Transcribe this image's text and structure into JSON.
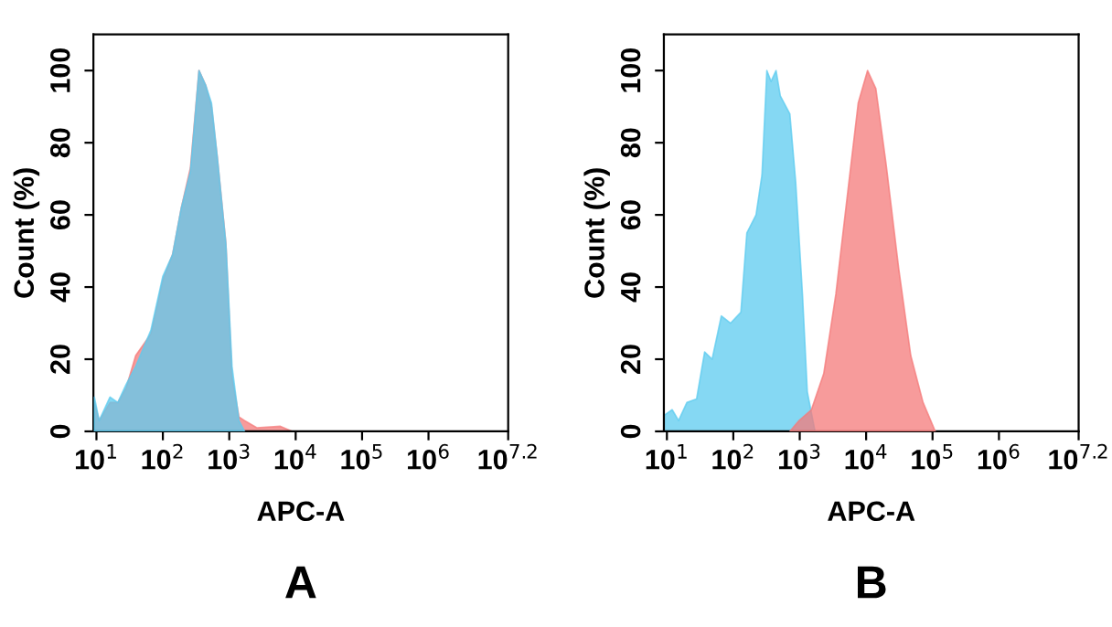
{
  "chart_data": [
    {
      "type": "area",
      "xlabel": "APC-A",
      "ylabel": "Count (%)",
      "log": "x",
      "xlim": [
        9,
        15850000
      ],
      "ylim": [
        0,
        110
      ],
      "grid": false,
      "legend": false,
      "xticks": [
        {
          "value": 10,
          "label": "10$^{1}$"
        },
        {
          "value": 100,
          "label": "10$^{2}$"
        },
        {
          "value": 1000,
          "label": "10$^{3}$"
        },
        {
          "value": 10000,
          "label": "10$^{4}$"
        },
        {
          "value": 100000,
          "label": "10$^{5}$"
        },
        {
          "value": 1000000,
          "label": "10$^{6}$"
        },
        {
          "value": 15850000,
          "label": "10$^{7.2}$"
        }
      ],
      "yticks": [
        0,
        20,
        40,
        60,
        80,
        100
      ],
      "annotations": [
        "A"
      ],
      "series": [
        {
          "color": "#f47a7a",
          "x": [
            9.3,
            11,
            16,
            21,
            28,
            39,
            66,
            100,
            140,
            190,
            260,
            350,
            440,
            540,
            660,
            890,
            1100,
            1400,
            1700,
            2600,
            5900,
            8900
          ],
          "values": [
            8,
            3,
            8,
            8,
            12,
            21,
            27,
            42,
            49,
            62,
            73,
            100,
            96,
            90,
            76,
            52,
            15,
            4,
            3,
            1,
            1.4,
            0
          ]
        },
        {
          "color": "#5ccbef",
          "x": [
            9.3,
            11,
            16,
            21,
            28,
            39,
            66,
            100,
            140,
            190,
            260,
            350,
            440,
            540,
            660,
            890,
            1100,
            1400,
            1700
          ],
          "values": [
            9.5,
            3,
            9.5,
            8,
            13,
            18,
            28,
            43,
            49,
            62,
            72,
            100,
            96,
            91,
            76,
            52,
            18,
            3,
            0
          ]
        }
      ]
    },
    {
      "type": "area",
      "xlabel": "APC-A",
      "ylabel": "Count (%)",
      "log": "x",
      "xlim": [
        9,
        15850000
      ],
      "ylim": [
        0,
        110
      ],
      "grid": false,
      "legend": false,
      "xticks": [
        {
          "value": 10,
          "label": "10$^{1}$"
        },
        {
          "value": 100,
          "label": "10$^{2}$"
        },
        {
          "value": 1000,
          "label": "10$^{3}$"
        },
        {
          "value": 10000,
          "label": "10$^{4}$"
        },
        {
          "value": 100000,
          "label": "10$^{5}$"
        },
        {
          "value": 1000000,
          "label": "10$^{6}$"
        },
        {
          "value": 15850000,
          "label": "10$^{7.2}$"
        }
      ],
      "yticks": [
        0,
        20,
        40,
        60,
        80,
        100
      ],
      "annotations": [
        "B"
      ],
      "series": [
        {
          "color": "#5ccbef",
          "x": [
            9,
            12,
            15,
            20,
            28,
            37,
            48,
            66,
            91,
            130,
            160,
            220,
            270,
            320,
            370,
            440,
            510,
            710,
            870,
            1100,
            1300,
            1700
          ],
          "values": [
            4.4,
            6,
            3,
            8,
            9,
            22,
            20,
            32,
            30,
            33,
            55,
            60,
            71,
            100,
            97,
            100,
            93,
            88,
            69,
            38,
            11,
            0
          ]
        },
        {
          "color": "#f47a7a",
          "x": [
            710,
            980,
            1500,
            2300,
            3500,
            5500,
            7600,
            10500,
            14000,
            20000,
            31000,
            47000,
            72000,
            110000
          ],
          "values": [
            0,
            3,
            6,
            16,
            38,
            69,
            91,
            100,
            95,
            74,
            45,
            21,
            8,
            0
          ]
        }
      ]
    }
  ]
}
